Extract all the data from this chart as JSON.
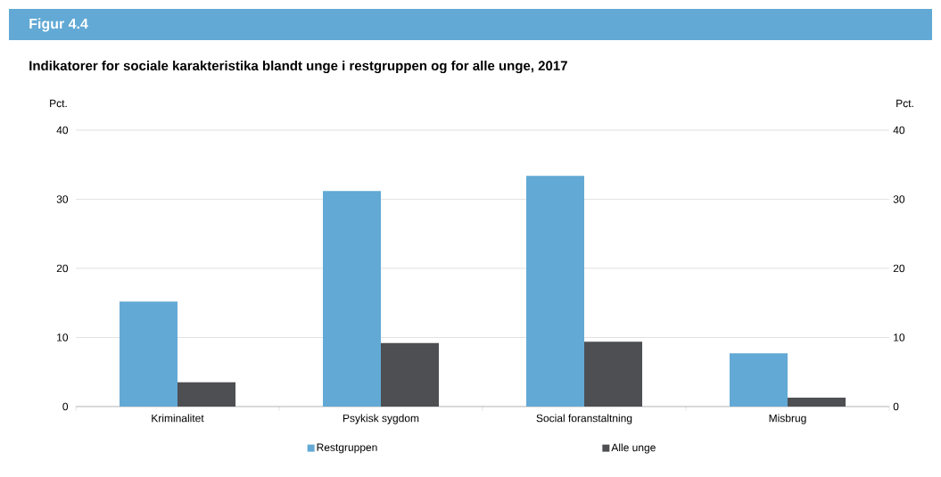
{
  "chart_data": {
    "type": "bar",
    "title": "Figur 4.4",
    "subtitle": "Indikatorer for sociale karakteristika blandt unge i restgruppen og for alle unge, 2017",
    "ylabel": "Pct.",
    "y2label": "Pct.",
    "categories": [
      "Kriminalitet",
      "Psykisk sygdom",
      "Social foranstaltning",
      "Misbrug"
    ],
    "series": [
      {
        "name": "Restgruppen",
        "color": "#62a9d5",
        "values": [
          15.2,
          31.2,
          33.4,
          7.7
        ]
      },
      {
        "name": "Alle unge",
        "color": "#4d4f53",
        "values": [
          3.5,
          9.2,
          9.4,
          1.3
        ]
      }
    ],
    "ylim": [
      0,
      40
    ],
    "yticks": [
      0,
      10,
      20,
      30,
      40
    ],
    "y2lim": [
      0,
      40
    ],
    "y2ticks": [
      0,
      10,
      20,
      30,
      40
    ],
    "grid": "y",
    "legend": "bottom"
  }
}
